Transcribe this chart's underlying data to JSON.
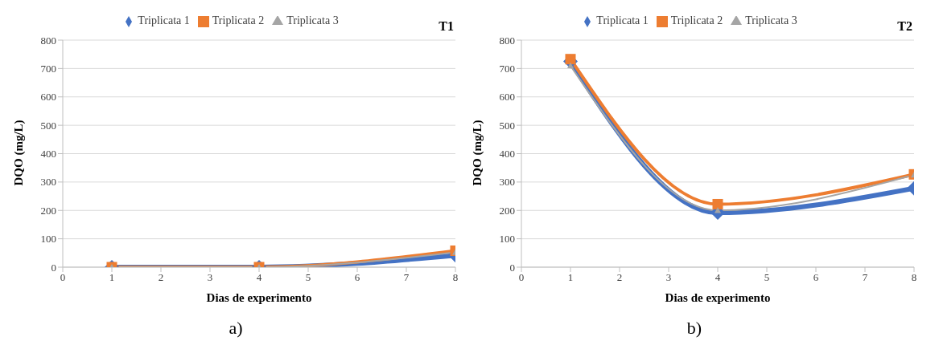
{
  "chart_data": [
    {
      "type": "line",
      "title": "T1",
      "xlabel": "Dias de experimento",
      "ylabel": "DQO (mg/L)",
      "annotations": [
        "a)"
      ],
      "x": [
        1,
        4,
        8
      ],
      "xlim": [
        0,
        8
      ],
      "xticks": [
        0,
        1,
        2,
        3,
        4,
        5,
        6,
        7,
        8
      ],
      "ylim": [
        0,
        800
      ],
      "yticks": [
        0,
        100,
        200,
        300,
        400,
        500,
        600,
        700,
        800
      ],
      "grid": "y",
      "legend": "top",
      "series": [
        {
          "name": "Triplicata 1",
          "color": "#4472c4",
          "marker": "diamond",
          "values": [
            0,
            0,
            42
          ]
        },
        {
          "name": "Triplicata 2",
          "color": "#ed7d31",
          "marker": "square",
          "values": [
            0,
            0,
            58
          ]
        },
        {
          "name": "Triplicata 3",
          "color": "#a5a5a5",
          "marker": "triangle",
          "values": [
            0,
            0,
            52
          ]
        }
      ]
    },
    {
      "type": "line",
      "title": "T2",
      "xlabel": "Dias de experimento",
      "ylabel": "DQO (mg/L)",
      "annotations": [
        "b)"
      ],
      "x": [
        1,
        4,
        8
      ],
      "xlim": [
        0,
        8
      ],
      "xticks": [
        0,
        1,
        2,
        3,
        4,
        5,
        6,
        7,
        8
      ],
      "ylim": [
        0,
        800
      ],
      "yticks": [
        0,
        100,
        200,
        300,
        400,
        500,
        600,
        700,
        800
      ],
      "grid": "y",
      "legend": "top",
      "series": [
        {
          "name": "Triplicata 1",
          "color": "#4472c4",
          "marker": "diamond",
          "values": [
            725,
            192,
            278
          ]
        },
        {
          "name": "Triplicata 2",
          "color": "#ed7d31",
          "marker": "square",
          "values": [
            733,
            222,
            327
          ]
        },
        {
          "name": "Triplicata 3",
          "color": "#a5a5a5",
          "marker": "triangle",
          "values": [
            710,
            200,
            325
          ]
        }
      ]
    }
  ]
}
